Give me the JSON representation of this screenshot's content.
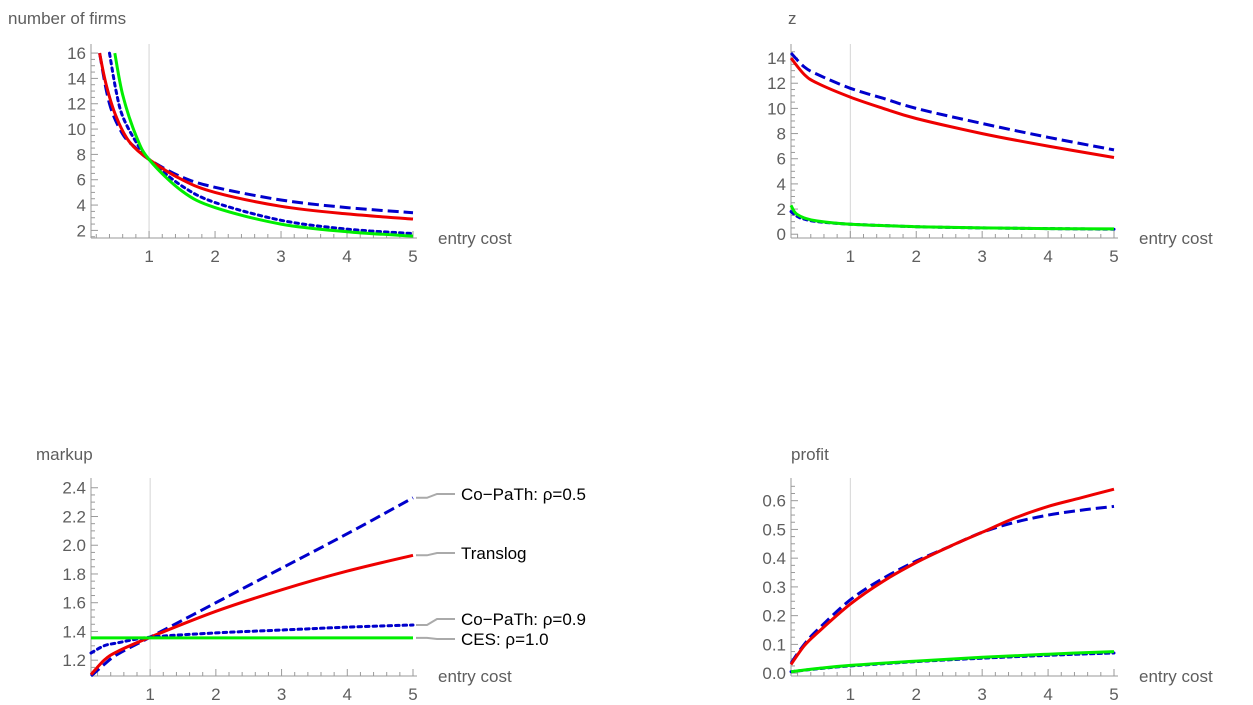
{
  "chart_data": [
    {
      "type": "line",
      "panel": "top-left",
      "ylabel": "number of firms",
      "xlabel": "entry cost",
      "xlim": [
        0.12,
        5.0
      ],
      "ylim": [
        1.4,
        16.4
      ],
      "xticks": [
        1,
        2,
        3,
        4,
        5
      ],
      "yticks": [
        2,
        4,
        6,
        8,
        10,
        12,
        14,
        16
      ],
      "gridline_x": 1,
      "series": [
        {
          "color": "#0000cc",
          "dash": "dashed",
          "x": [
            0.25,
            0.4,
            0.6,
            0.8,
            1.0,
            1.5,
            2,
            3,
            4,
            5
          ],
          "y": [
            16,
            12,
            9.6,
            8.5,
            7.6,
            6.2,
            5.4,
            4.4,
            3.8,
            3.4
          ]
        },
        {
          "color": "#0000cc",
          "dash": "dotted",
          "x": [
            0.4,
            0.5,
            0.6,
            0.8,
            1.0,
            1.5,
            2,
            3,
            4,
            5
          ],
          "y": [
            16,
            13,
            11,
            9,
            7.6,
            5.5,
            4.2,
            2.8,
            2.1,
            1.75
          ]
        },
        {
          "color": "#ee0000",
          "dash": "solid",
          "x": [
            0.25,
            0.35,
            0.5,
            0.7,
            1.0,
            1.5,
            2,
            3,
            4,
            5
          ],
          "y": [
            16,
            13.5,
            11,
            9,
            7.6,
            6,
            5,
            3.9,
            3.3,
            2.9
          ]
        },
        {
          "color": "#00ee00",
          "dash": "solid",
          "x": [
            0.48,
            0.6,
            0.8,
            1.0,
            1.5,
            2,
            3,
            4,
            5
          ],
          "y": [
            16,
            12.7,
            9.5,
            7.6,
            5.1,
            3.8,
            2.5,
            1.9,
            1.55
          ]
        }
      ]
    },
    {
      "type": "line",
      "panel": "top-right",
      "ylabel": "z",
      "xlabel": "entry cost",
      "xlim": [
        0.1,
        5.0
      ],
      "ylim": [
        -0.3,
        14.8
      ],
      "xticks": [
        1,
        2,
        3,
        4,
        5
      ],
      "yticks": [
        0,
        2,
        4,
        6,
        8,
        10,
        12,
        14
      ],
      "gridline_x": 1,
      "series": [
        {
          "color": "#0000cc",
          "dash": "dashed",
          "x": [
            0.1,
            0.3,
            0.5,
            1,
            1.5,
            2,
            3,
            4,
            5
          ],
          "y": [
            14.4,
            13.3,
            12.7,
            11.6,
            10.8,
            10,
            8.8,
            7.7,
            6.7
          ]
        },
        {
          "color": "#ee0000",
          "dash": "solid",
          "x": [
            0.1,
            0.3,
            0.5,
            1,
            1.5,
            2,
            3,
            4,
            5
          ],
          "y": [
            14.0,
            12.7,
            12,
            10.9,
            10,
            9.2,
            8,
            7,
            6.1
          ]
        },
        {
          "color": "#0000cc",
          "dash": "dotted",
          "x": [
            0.1,
            0.2,
            0.3,
            0.5,
            1,
            2,
            3,
            4,
            5
          ],
          "y": [
            1.8,
            1.4,
            1.2,
            1.0,
            0.8,
            0.6,
            0.5,
            0.45,
            0.4
          ]
        },
        {
          "color": "#00ee00",
          "dash": "solid",
          "x": [
            0.1,
            0.15,
            0.2,
            0.3,
            0.5,
            1,
            2,
            3,
            4,
            5
          ],
          "y": [
            2.3,
            1.8,
            1.55,
            1.3,
            1.05,
            0.8,
            0.6,
            0.5,
            0.45,
            0.42
          ]
        }
      ]
    },
    {
      "type": "line",
      "panel": "bottom-left",
      "ylabel": "markup",
      "xlabel": "entry cost",
      "xlim": [
        0.1,
        5.0
      ],
      "ylim": [
        1.09,
        2.44
      ],
      "xticks": [
        1,
        2,
        3,
        4,
        5
      ],
      "yticks": [
        1.2,
        1.4,
        1.6,
        1.8,
        2.0,
        2.2,
        2.4
      ],
      "gridline_x": 1,
      "series": [
        {
          "name": "Co−PaTh: ρ=0.5",
          "color": "#0000cc",
          "dash": "dashed",
          "x": [
            0.1,
            0.3,
            0.5,
            1,
            2,
            3,
            4,
            5
          ],
          "y": [
            1.09,
            1.17,
            1.24,
            1.36,
            1.6,
            1.84,
            2.08,
            2.33
          ]
        },
        {
          "name": "Translog",
          "color": "#ee0000",
          "dash": "solid",
          "x": [
            0.1,
            0.3,
            0.5,
            1,
            2,
            3,
            4,
            5
          ],
          "y": [
            1.1,
            1.2,
            1.26,
            1.36,
            1.54,
            1.69,
            1.82,
            1.93
          ]
        },
        {
          "name": "Co−PaTh: ρ=0.9",
          "color": "#0000cc",
          "dash": "dotted",
          "x": [
            0.1,
            0.3,
            0.5,
            1,
            2,
            3,
            4,
            5
          ],
          "y": [
            1.25,
            1.3,
            1.32,
            1.36,
            1.39,
            1.41,
            1.43,
            1.445
          ]
        },
        {
          "name": "CES: ρ=1.0",
          "color": "#00ee00",
          "dash": "solid",
          "x": [
            0.1,
            5
          ],
          "y": [
            1.355,
            1.355
          ]
        }
      ]
    },
    {
      "type": "line",
      "panel": "bottom-right",
      "ylabel": "profit",
      "xlabel": "entry cost",
      "xlim": [
        0.1,
        5.0
      ],
      "ylim": [
        -0.01,
        0.665
      ],
      "xticks": [
        1,
        2,
        3,
        4,
        5
      ],
      "yticks": [
        0.0,
        0.1,
        0.2,
        0.3,
        0.4,
        0.5,
        0.6
      ],
      "gridline_x": 1,
      "series": [
        {
          "color": "#0000cc",
          "dash": "dashed",
          "x": [
            0.1,
            0.3,
            0.5,
            1,
            1.5,
            2,
            2.5,
            3,
            3.5,
            4,
            4.5,
            5
          ],
          "y": [
            0.035,
            0.1,
            0.15,
            0.255,
            0.33,
            0.39,
            0.44,
            0.49,
            0.525,
            0.55,
            0.567,
            0.58
          ]
        },
        {
          "color": "#ee0000",
          "dash": "solid",
          "x": [
            0.1,
            0.3,
            0.5,
            1,
            1.5,
            2,
            2.5,
            3,
            3.5,
            4,
            4.5,
            5
          ],
          "y": [
            0.03,
            0.095,
            0.14,
            0.24,
            0.32,
            0.385,
            0.44,
            0.49,
            0.54,
            0.58,
            0.61,
            0.64
          ]
        },
        {
          "color": "#0000cc",
          "dash": "dotted",
          "x": [
            0.1,
            0.5,
            1,
            2,
            3,
            4,
            5
          ],
          "y": [
            0.005,
            0.015,
            0.025,
            0.04,
            0.052,
            0.062,
            0.07
          ]
        },
        {
          "color": "#00ee00",
          "dash": "solid",
          "x": [
            0.1,
            0.5,
            1,
            2,
            3,
            4,
            5
          ],
          "y": [
            0.005,
            0.016,
            0.027,
            0.042,
            0.055,
            0.066,
            0.075
          ]
        }
      ]
    }
  ]
}
